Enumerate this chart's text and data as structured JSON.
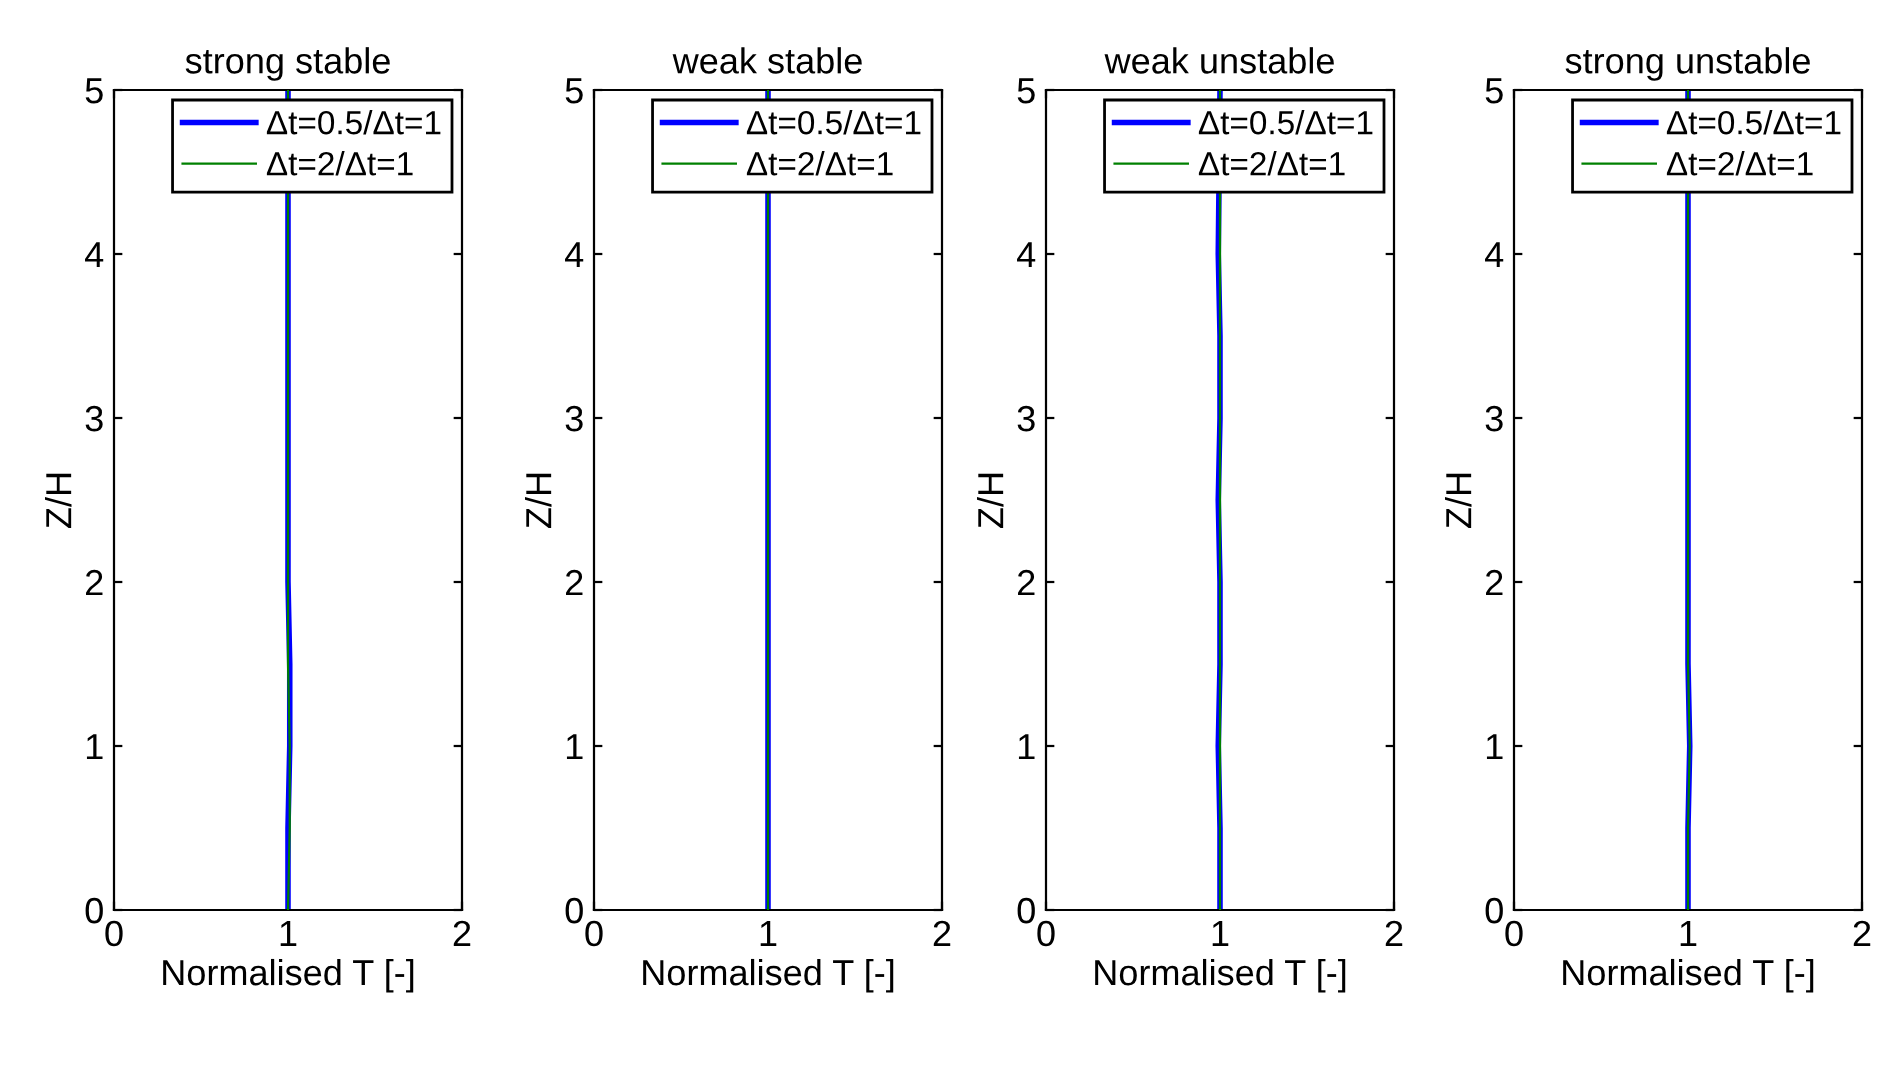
{
  "chart_data": [
    {
      "type": "line",
      "title": "strong stable",
      "xlabel": "Normalised T [-]",
      "ylabel": "Z/H",
      "xlim": [
        0,
        2
      ],
      "xticks": [
        0,
        1,
        2
      ],
      "ylim": [
        0,
        5
      ],
      "yticks": [
        0,
        1,
        2,
        3,
        4,
        5
      ],
      "grid": false,
      "legend": "top right",
      "series": [
        {
          "name": "Δt=0.5/Δt=1",
          "color": "#0000ff",
          "x": [
            1.0,
            1.0,
            1.01,
            1.01,
            1.0,
            1.0,
            1.0,
            1.0,
            1.0,
            1.0
          ],
          "values": [
            0,
            0.5,
            1.0,
            1.5,
            2.0,
            2.5,
            3.0,
            3.5,
            4.0,
            5.0
          ]
        },
        {
          "name": "Δt=2/Δt=1",
          "color": "#008000",
          "x": [
            1.0,
            1.01,
            1.01,
            1.0,
            1.0,
            1.0,
            1.0,
            1.0,
            1.0,
            1.0
          ],
          "values": [
            0,
            0.5,
            1.0,
            1.5,
            2.0,
            2.5,
            3.0,
            3.5,
            4.0,
            5.0
          ]
        }
      ]
    },
    {
      "type": "line",
      "title": "weak stable",
      "xlabel": "Normalised T [-]",
      "ylabel": "Z/H",
      "xlim": [
        0,
        2
      ],
      "xticks": [
        0,
        1,
        2
      ],
      "ylim": [
        0,
        5
      ],
      "yticks": [
        0,
        1,
        2,
        3,
        4,
        5
      ],
      "grid": false,
      "legend": "top right",
      "series": [
        {
          "name": "Δt=0.5/Δt=1",
          "color": "#0000ff",
          "x": [
            1.0,
            1.0,
            1.0,
            1.0,
            1.0,
            1.0,
            1.0,
            1.0,
            1.0,
            1.0,
            1.0
          ],
          "values": [
            0,
            0.5,
            0.8,
            1.0,
            1.5,
            2.0,
            2.5,
            3.0,
            3.5,
            4.0,
            5.0
          ]
        },
        {
          "name": "Δt=2/Δt=1",
          "color": "#008000",
          "x": [
            1.0,
            1.0,
            1.0,
            1.0,
            1.0,
            1.0,
            1.0,
            1.0,
            1.0
          ],
          "values": [
            0,
            1.0,
            1.5,
            2.0,
            2.5,
            3.0,
            3.5,
            4.0,
            5.0
          ]
        }
      ]
    },
    {
      "type": "line",
      "title": "weak unstable",
      "xlabel": "Normalised T [-]",
      "ylabel": "Z/H",
      "xlim": [
        0,
        2
      ],
      "xticks": [
        0,
        1,
        2
      ],
      "ylim": [
        0,
        5
      ],
      "yticks": [
        0,
        1,
        2,
        3,
        4,
        5
      ],
      "grid": false,
      "legend": "top right",
      "series": [
        {
          "name": "Δt=0.5/Δt=1",
          "color": "#0000ff",
          "x": [
            1.0,
            1.0,
            0.99,
            1.0,
            1.0,
            0.99,
            1.0,
            1.0,
            0.99,
            1.0
          ],
          "values": [
            0,
            0.5,
            1.0,
            1.5,
            2.0,
            2.5,
            3.0,
            3.5,
            4.0,
            5.0
          ]
        },
        {
          "name": "Δt=2/Δt=1",
          "color": "#008000",
          "x": [
            1.0,
            1.0,
            1.0,
            1.0,
            1.0,
            1.0,
            1.0,
            1.0,
            1.0,
            1.0
          ],
          "values": [
            0,
            0.5,
            1.0,
            1.5,
            2.0,
            2.5,
            3.0,
            3.5,
            4.0,
            5.0
          ]
        }
      ]
    },
    {
      "type": "line",
      "title": "strong unstable",
      "xlabel": "Normalised T [-]",
      "ylabel": "Z/H",
      "xlim": [
        0,
        2
      ],
      "xticks": [
        0,
        1,
        2
      ],
      "ylim": [
        0,
        5
      ],
      "yticks": [
        0,
        1,
        2,
        3,
        4,
        5
      ],
      "grid": false,
      "legend": "top right",
      "series": [
        {
          "name": "Δt=0.5/Δt=1",
          "color": "#0000ff",
          "x": [
            1.0,
            1.0,
            1.01,
            1.0,
            1.0,
            1.0,
            1.0,
            1.0,
            1.0,
            1.0
          ],
          "values": [
            0,
            0.5,
            1.0,
            1.5,
            2.0,
            2.5,
            3.0,
            3.5,
            4.0,
            5.0
          ]
        },
        {
          "name": "Δt=2/Δt=1",
          "color": "#008000",
          "x": [
            1.0,
            1.0,
            1.01,
            1.0,
            1.0,
            1.0,
            1.0,
            1.0,
            1.0,
            1.0
          ],
          "values": [
            0,
            0.5,
            1.0,
            1.5,
            2.0,
            2.5,
            3.0,
            3.5,
            4.0,
            5.0
          ]
        }
      ]
    }
  ]
}
